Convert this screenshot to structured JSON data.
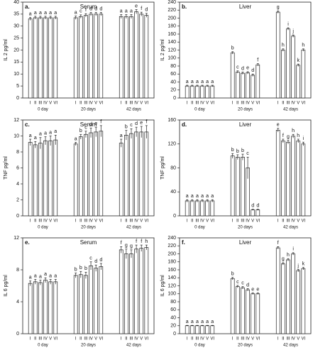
{
  "chart_data": [
    {
      "type": "bar",
      "panel": "a.",
      "title": "Serum",
      "ylabel": "IL 2 pg/ml",
      "categories": [
        "I",
        "II",
        "III",
        "IV",
        "V",
        "VI",
        "I",
        "II",
        "III",
        "IV",
        "V",
        "VI",
        "I",
        "II",
        "III",
        "IV",
        "V",
        "VI"
      ],
      "groups": [
        "0 day",
        "20 days",
        "42 days"
      ],
      "values": [
        33,
        33.5,
        33.5,
        33.5,
        33.5,
        33.5,
        33.5,
        34,
        34.5,
        35,
        35,
        35,
        34,
        34,
        34,
        36,
        35,
        34.5
      ],
      "errors": [
        0.6,
        0.6,
        0.6,
        0.6,
        0.6,
        0.6,
        0.7,
        0.7,
        0.7,
        0.7,
        0.7,
        0.7,
        0.8,
        0.8,
        0.8,
        0.9,
        0.8,
        0.8
      ],
      "annotations": [
        "a",
        "a",
        "a",
        "a",
        "a",
        "a",
        "a",
        "c",
        "f",
        "d",
        "d",
        "d",
        "a",
        "a",
        "a",
        "e",
        "f",
        "d"
      ],
      "color": "#ffffff",
      "ylim": [
        0,
        40
      ],
      "yticks": [
        0,
        5,
        10,
        15,
        20,
        25,
        30,
        35,
        40
      ]
    },
    {
      "type": "bar",
      "panel": "b.",
      "title": "Liver",
      "ylabel": "IL 2 pg/ml",
      "categories": [
        "I",
        "II",
        "III",
        "IV",
        "V",
        "VI",
        "I",
        "II",
        "III",
        "IV",
        "V",
        "VI",
        "I",
        "II",
        "III",
        "IV",
        "V",
        "VI"
      ],
      "groups": [
        "0 day",
        "20 days",
        "42 days"
      ],
      "values": [
        30,
        30,
        30,
        30,
        30,
        30,
        113,
        65,
        62,
        63,
        57,
        83,
        215,
        120,
        173,
        155,
        82,
        120
      ],
      "errors": [
        2,
        2,
        2,
        2,
        2,
        2,
        3,
        3,
        3,
        3,
        3,
        3,
        3,
        3,
        3,
        3,
        3,
        3
      ],
      "annotations": [
        "a",
        "a",
        "a",
        "a",
        "a",
        "a",
        "b",
        "c",
        "d",
        "e",
        "d",
        "f",
        "g",
        "h",
        "i",
        "j",
        "k",
        "h"
      ],
      "color": "#ffffff",
      "ylim": [
        0,
        240
      ],
      "yticks": [
        0,
        20,
        40,
        60,
        80,
        100,
        120,
        140,
        160,
        180,
        200,
        220,
        240
      ]
    },
    {
      "type": "bar",
      "panel": "c.",
      "title": "Serum",
      "ylabel": "TNF pg/ml",
      "categories": [
        "I",
        "II",
        "III",
        "IV",
        "V",
        "VI",
        "I",
        "II",
        "III",
        "IV",
        "V",
        "VI",
        "I",
        "II",
        "III",
        "IV",
        "V",
        "VI"
      ],
      "groups": [
        "0 day",
        "20 days",
        "42 days"
      ],
      "values": [
        9.2,
        8.9,
        9.1,
        9.4,
        9.4,
        9.5,
        9.0,
        9.9,
        10.2,
        10.4,
        10.5,
        10.6,
        9.1,
        10.1,
        10.3,
        10.5,
        10.5,
        10.5
      ],
      "errors": [
        0.4,
        0.4,
        0.7,
        0.5,
        0.6,
        0.6,
        0.2,
        0.3,
        0.4,
        0.6,
        0.6,
        0.7,
        0.5,
        0.6,
        0.6,
        0.6,
        0.7,
        0.8
      ],
      "annotations": [
        "a",
        "a",
        "a",
        "a",
        "a",
        "a",
        "a",
        "b",
        "c",
        "d",
        "e",
        "f",
        "a",
        "b",
        "c",
        "d",
        "e",
        "f"
      ],
      "color": "#ffffff",
      "ylim": [
        0,
        12
      ],
      "yticks": [
        0,
        2,
        4,
        6,
        8,
        10,
        12
      ]
    },
    {
      "type": "bar",
      "panel": "d.",
      "title": "Liver",
      "ylabel": "TNF pg/ml",
      "categories": [
        "I",
        "II",
        "III",
        "IV",
        "V",
        "VI",
        "I",
        "II",
        "III",
        "IV",
        "V",
        "VI",
        "I",
        "II",
        "III",
        "IV",
        "V",
        "VI"
      ],
      "groups": [
        "0 day",
        "20 days",
        "42 days"
      ],
      "values": [
        25,
        25,
        25,
        25,
        25,
        25,
        100,
        98,
        98,
        80,
        10,
        10,
        143,
        125,
        123,
        133,
        125,
        120
      ],
      "errors": [
        2,
        2,
        2,
        2,
        2,
        2,
        4,
        4,
        5,
        18,
        1,
        1,
        3,
        3,
        3,
        3,
        3,
        3
      ],
      "annotations": [
        "a",
        "a",
        "a",
        "a",
        "a",
        "a",
        "b",
        "b",
        "b",
        "c",
        "d",
        "d",
        "e",
        "f",
        "g",
        "h",
        "h",
        "i"
      ],
      "color": "#ffffff",
      "ylim": [
        0,
        160
      ],
      "yticks": [
        0,
        40,
        80,
        120,
        160
      ]
    },
    {
      "type": "bar",
      "panel": "e.",
      "title": "Serum",
      "ylabel": "IL 6 pg/ml",
      "categories": [
        "I",
        "II",
        "III",
        "IV",
        "V",
        "VI",
        "I",
        "II",
        "III",
        "IV",
        "V",
        "VI",
        "I",
        "II",
        "III",
        "IV",
        "V",
        "VI"
      ],
      "groups": [
        "0 day",
        "20 days",
        "42 days"
      ],
      "values": [
        6.3,
        6.5,
        6.4,
        6.7,
        6.5,
        6.5,
        7.3,
        7.4,
        7.3,
        8.5,
        8.2,
        8.4,
        10.5,
        10,
        10,
        10.6,
        10.7,
        10.8
      ],
      "errors": [
        0.3,
        0.3,
        0.3,
        0.3,
        0.3,
        0.3,
        0.3,
        0.4,
        0.4,
        0.5,
        0.4,
        0.4,
        0.4,
        0.6,
        0.5,
        0.5,
        0.4,
        0.3
      ],
      "annotations": [
        "a",
        "a",
        "a",
        "a",
        "a",
        "a",
        "b",
        "b",
        "b",
        "c",
        "d",
        "d",
        "f",
        "g",
        "g",
        "f",
        "f",
        "h"
      ],
      "color": "#ffffff",
      "ylim": [
        0,
        12
      ],
      "yticks": [
        0,
        4,
        8,
        12
      ]
    },
    {
      "type": "bar",
      "panel": "f.",
      "title": "Liver",
      "ylabel": "IL 6 pg/ml",
      "categories": [
        "I",
        "II",
        "III",
        "IV",
        "V",
        "VI",
        "I",
        "II",
        "III",
        "IV",
        "V",
        "VI",
        "I",
        "II",
        "III",
        "IV",
        "V",
        "VI"
      ],
      "groups": [
        "0 day",
        "20 days",
        "42 days"
      ],
      "values": [
        20,
        20,
        20,
        20,
        20,
        20,
        138,
        118,
        115,
        110,
        100,
        100,
        215,
        175,
        185,
        200,
        158,
        163
      ],
      "errors": [
        1,
        1,
        1,
        1,
        1,
        1,
        3,
        3,
        3,
        3,
        2,
        2,
        3,
        3,
        3,
        3,
        3,
        3
      ],
      "annotations": [
        "a",
        "a",
        "a",
        "a",
        "a",
        "a",
        "b",
        "c",
        "c",
        "d",
        "e",
        "e",
        "f",
        "g",
        "h",
        "i",
        "j",
        "k"
      ],
      "color": "#ffffff",
      "ylim": [
        0,
        240
      ],
      "yticks": [
        0,
        20,
        40,
        60,
        80,
        100,
        120,
        140,
        160,
        180,
        200,
        220,
        240
      ]
    }
  ]
}
